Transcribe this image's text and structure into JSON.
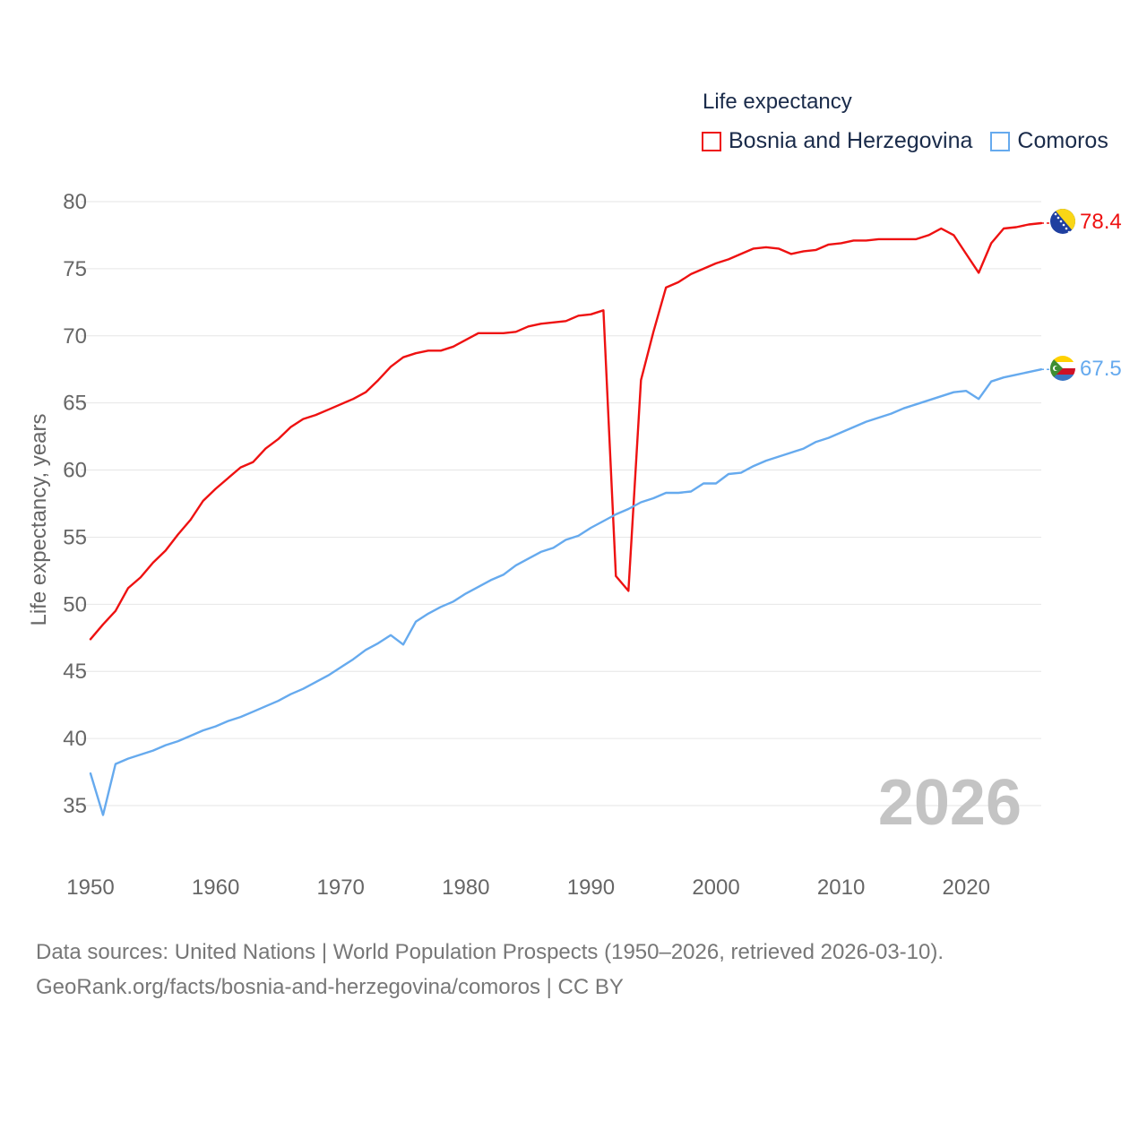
{
  "legend": {
    "title": "Life expectancy",
    "items": [
      {
        "label": "Bosnia and Herzegovina",
        "color": "#ee1111"
      },
      {
        "label": "Comoros",
        "color": "#66aaee"
      }
    ]
  },
  "footer": {
    "line1": "Data sources: United Nations | World Population Prospects (1950–2026, retrieved 2026-03-10).",
    "line2": "GeoRank.org/facts/bosnia-and-herzegovina/comoros | CC BY"
  },
  "chart_data": {
    "type": "line",
    "title": "Life expectancy",
    "xlabel": "",
    "ylabel": "Life expectancy, years",
    "xlim": [
      1950,
      2026
    ],
    "ylim": [
      32,
      80
    ],
    "y_ticks": [
      35,
      40,
      45,
      50,
      55,
      60,
      65,
      70,
      75,
      80
    ],
    "x_ticks": [
      1950,
      1960,
      1970,
      1980,
      1990,
      2000,
      2010,
      2020
    ],
    "year_label": "2026",
    "grid": true,
    "series": [
      {
        "name": "Bosnia and Herzegovina",
        "color": "#ee1111",
        "end_label": "78.4",
        "flag": "bosnia-flag",
        "x": [
          1950,
          1951,
          1952,
          1953,
          1954,
          1955,
          1956,
          1957,
          1958,
          1959,
          1960,
          1961,
          1962,
          1963,
          1964,
          1965,
          1966,
          1967,
          1968,
          1969,
          1970,
          1971,
          1972,
          1973,
          1974,
          1975,
          1976,
          1977,
          1978,
          1979,
          1980,
          1981,
          1982,
          1983,
          1984,
          1985,
          1986,
          1987,
          1988,
          1989,
          1990,
          1991,
          1992,
          1993,
          1994,
          1995,
          1996,
          1997,
          1998,
          1999,
          2000,
          2001,
          2002,
          2003,
          2004,
          2005,
          2006,
          2007,
          2008,
          2009,
          2010,
          2011,
          2012,
          2013,
          2014,
          2015,
          2016,
          2017,
          2018,
          2019,
          2020,
          2021,
          2022,
          2023,
          2024,
          2025,
          2026
        ],
        "values": [
          47.4,
          48.5,
          49.5,
          51.2,
          52.0,
          53.1,
          54.0,
          55.2,
          56.3,
          57.7,
          58.6,
          59.4,
          60.2,
          60.6,
          61.6,
          62.3,
          63.2,
          63.8,
          64.1,
          64.5,
          64.9,
          65.3,
          65.8,
          66.7,
          67.7,
          68.4,
          68.7,
          68.9,
          68.9,
          69.2,
          69.7,
          70.2,
          70.2,
          70.2,
          70.3,
          70.7,
          70.9,
          71.0,
          71.1,
          71.5,
          71.6,
          71.9,
          52.1,
          51.0,
          66.7,
          70.3,
          73.6,
          74.0,
          74.6,
          75.0,
          75.4,
          75.7,
          76.1,
          76.5,
          76.6,
          76.5,
          76.1,
          76.3,
          76.4,
          76.8,
          76.9,
          77.1,
          77.1,
          77.2,
          77.2,
          77.2,
          77.2,
          77.5,
          78.0,
          77.5,
          76.1,
          74.7,
          76.9,
          78.0,
          78.1,
          78.3,
          78.4
        ]
      },
      {
        "name": "Comoros",
        "color": "#66aaee",
        "end_label": "67.5",
        "flag": "comoros-flag",
        "x": [
          1950,
          1951,
          1952,
          1953,
          1954,
          1955,
          1956,
          1957,
          1958,
          1959,
          1960,
          1961,
          1962,
          1963,
          1964,
          1965,
          1966,
          1967,
          1968,
          1969,
          1970,
          1971,
          1972,
          1973,
          1974,
          1975,
          1976,
          1977,
          1978,
          1979,
          1980,
          1981,
          1982,
          1983,
          1984,
          1985,
          1986,
          1987,
          1988,
          1989,
          1990,
          1991,
          1992,
          1993,
          1994,
          1995,
          1996,
          1997,
          1998,
          1999,
          2000,
          2001,
          2002,
          2003,
          2004,
          2005,
          2006,
          2007,
          2008,
          2009,
          2010,
          2011,
          2012,
          2013,
          2014,
          2015,
          2016,
          2017,
          2018,
          2019,
          2020,
          2021,
          2022,
          2023,
          2024,
          2025,
          2026
        ],
        "values": [
          37.4,
          34.3,
          38.1,
          38.5,
          38.8,
          39.1,
          39.5,
          39.8,
          40.2,
          40.6,
          40.9,
          41.3,
          41.6,
          42.0,
          42.4,
          42.8,
          43.3,
          43.7,
          44.2,
          44.7,
          45.3,
          45.9,
          46.6,
          47.1,
          47.7,
          47.0,
          48.7,
          49.3,
          49.8,
          50.2,
          50.8,
          51.3,
          51.8,
          52.2,
          52.9,
          53.4,
          53.9,
          54.2,
          54.8,
          55.1,
          55.7,
          56.2,
          56.7,
          57.1,
          57.6,
          57.9,
          58.3,
          58.3,
          58.4,
          59.0,
          59.0,
          59.7,
          59.8,
          60.3,
          60.7,
          61.0,
          61.3,
          61.6,
          62.1,
          62.4,
          62.8,
          63.2,
          63.6,
          63.9,
          64.2,
          64.6,
          64.9,
          65.2,
          65.5,
          65.8,
          65.9,
          65.3,
          66.6,
          66.9,
          67.1,
          67.3,
          67.5
        ]
      }
    ]
  }
}
